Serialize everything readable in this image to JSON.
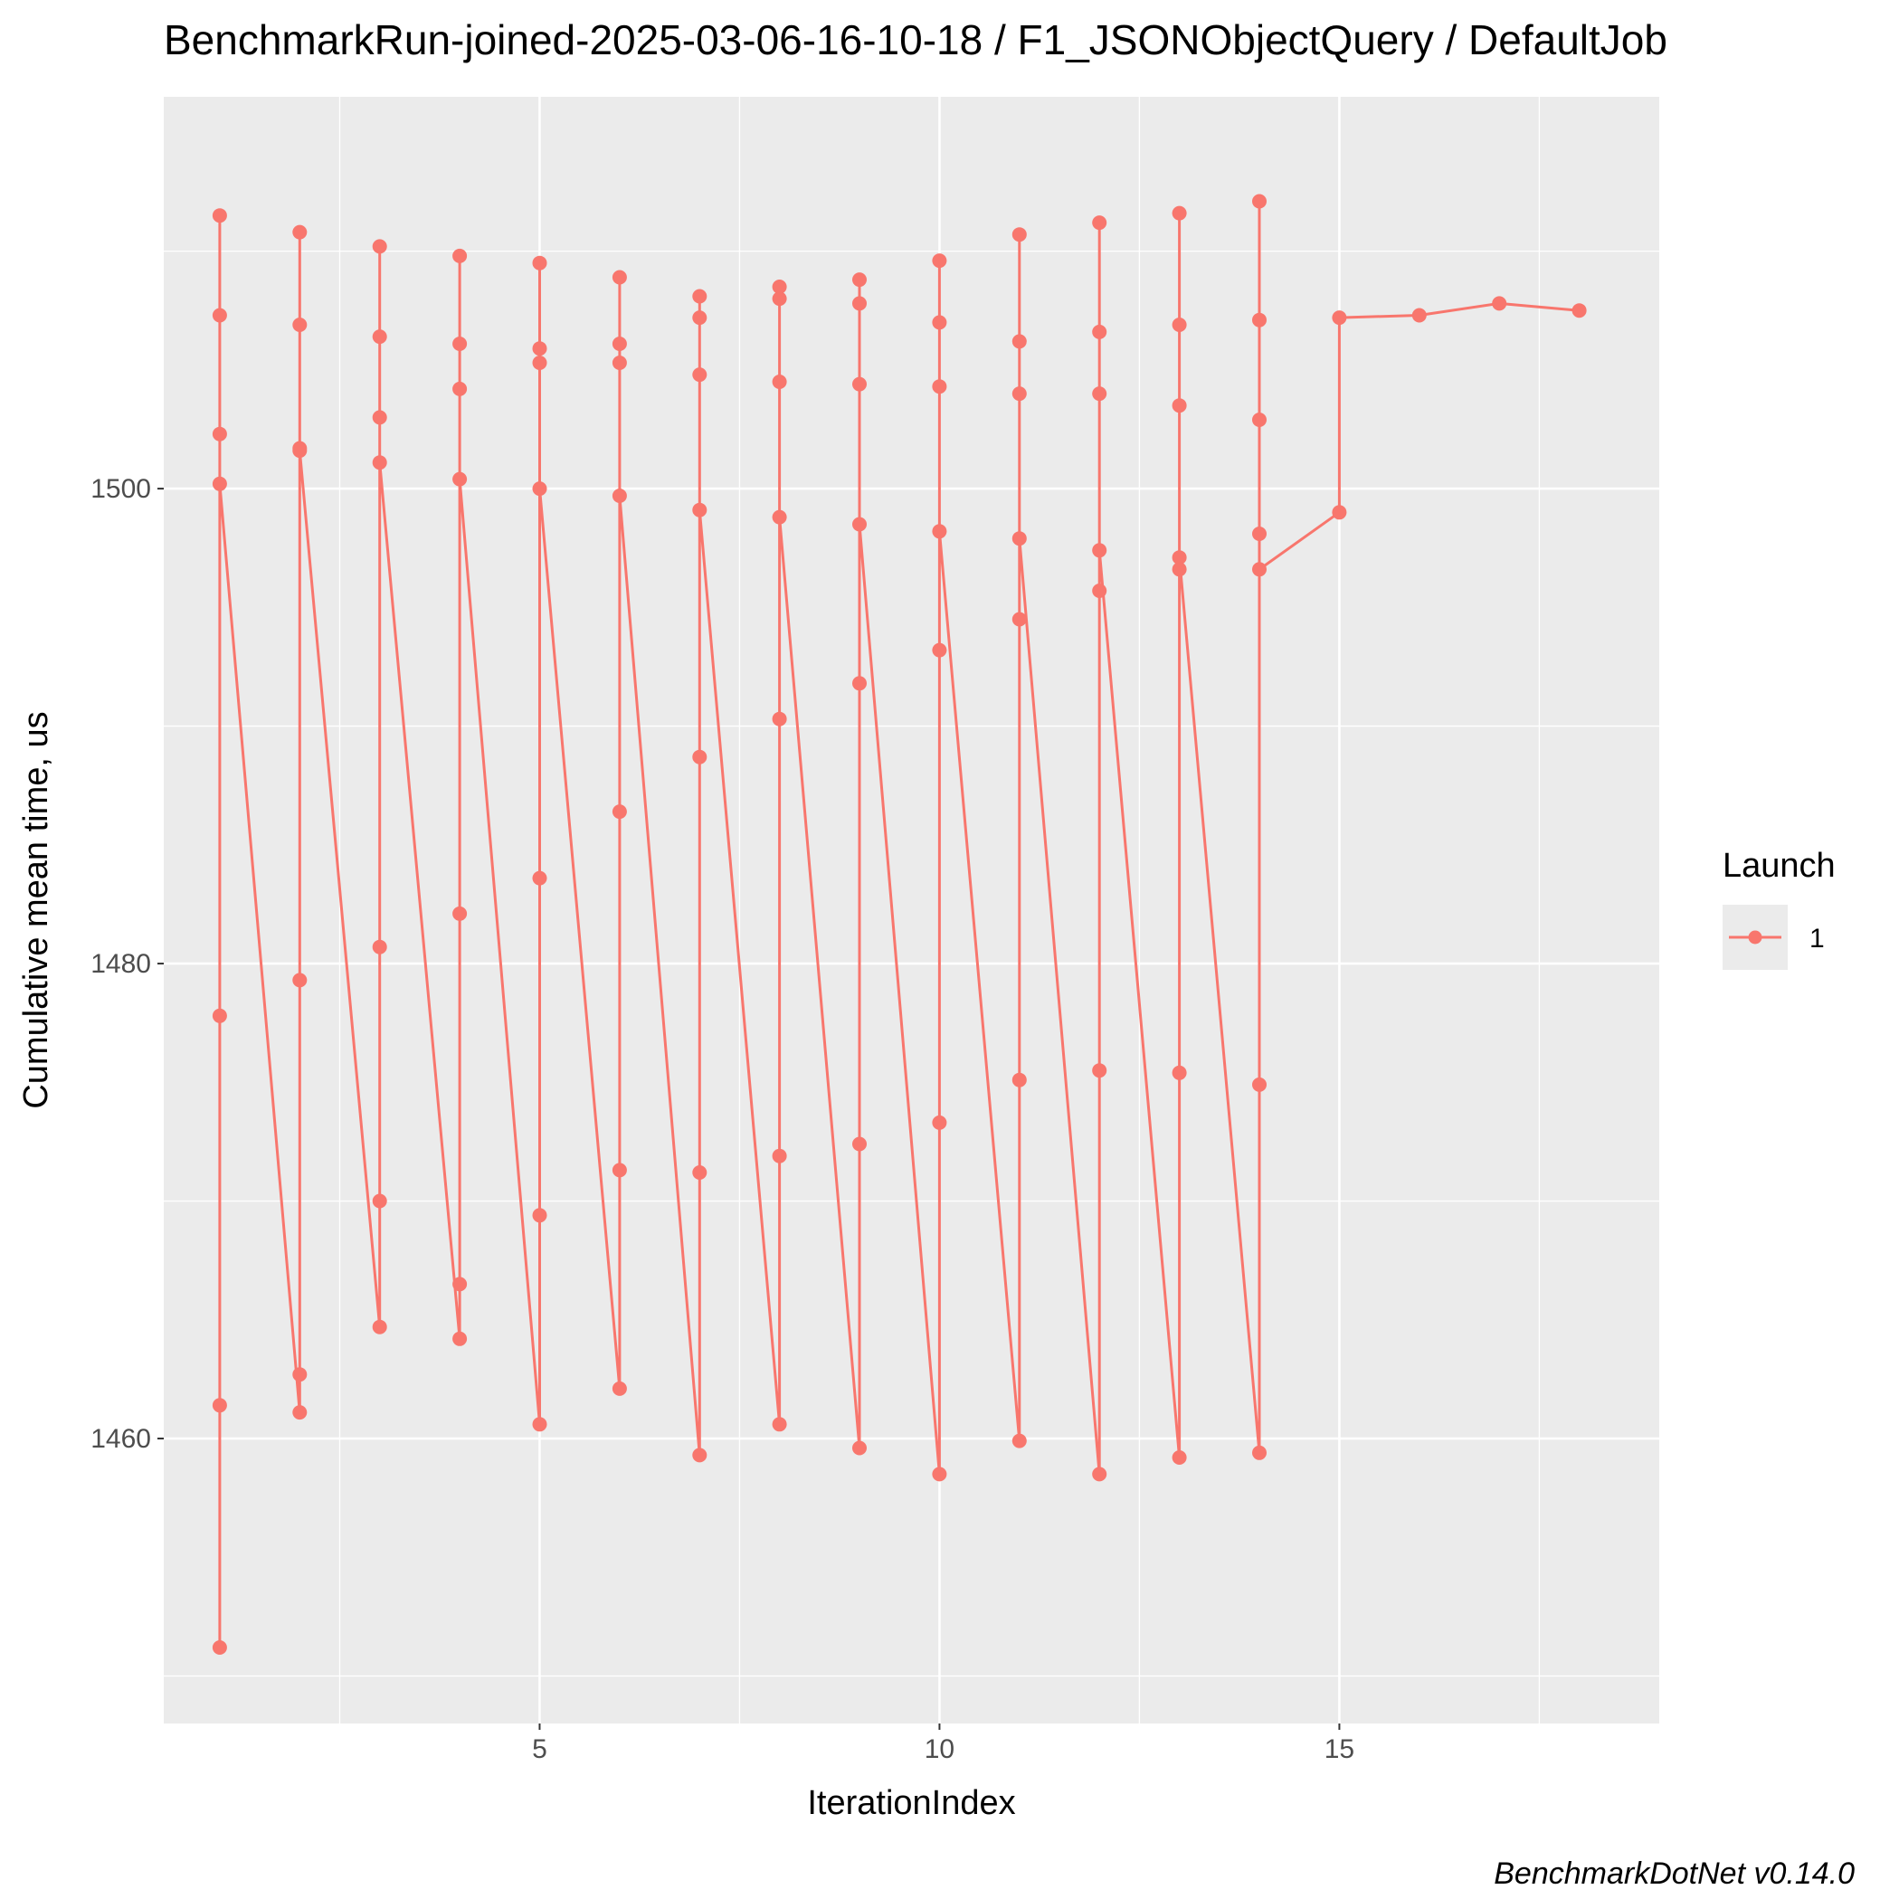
{
  "chart_data": {
    "type": "line",
    "title": "BenchmarkRun-joined-2025-03-06-16-10-18 / F1_JSONObjectQuery / DefaultJob",
    "xlabel": "IterationIndex",
    "ylabel": "Cumulative mean time, us",
    "caption": "BenchmarkDotNet v0.14.0",
    "xlim": [
      0.3,
      19.0
    ],
    "ylim": [
      1448.0,
      1516.5
    ],
    "x_ticks": [
      5,
      10,
      15
    ],
    "x_tick_labels": [
      "5",
      "10",
      "15"
    ],
    "y_ticks": [
      1460,
      1480,
      1500
    ],
    "y_tick_labels": [
      "1460",
      "1480",
      "1500"
    ],
    "grid": true,
    "legend": {
      "title": "Launch",
      "position": "right",
      "entries": [
        "1"
      ]
    },
    "series": [
      {
        "name": "1",
        "color": "#F8766D",
        "points": [
          {
            "x": 1,
            "y": 1451.2
          },
          {
            "x": 1,
            "y": 1461.4
          },
          {
            "x": 1,
            "y": 1477.8
          },
          {
            "x": 1,
            "y": 1502.3
          },
          {
            "x": 1,
            "y": 1507.3
          },
          {
            "x": 1,
            "y": 1511.5
          },
          {
            "x": 1,
            "y": 1500.2
          },
          {
            "x": 2,
            "y": 1461.1
          },
          {
            "x": 2,
            "y": 1462.7
          },
          {
            "x": 2,
            "y": 1479.3
          },
          {
            "x": 2,
            "y": 1501.7
          },
          {
            "x": 2,
            "y": 1506.9
          },
          {
            "x": 2,
            "y": 1510.8
          },
          {
            "x": 2,
            "y": 1501.6
          },
          {
            "x": 3,
            "y": 1464.7
          },
          {
            "x": 3,
            "y": 1470.0
          },
          {
            "x": 3,
            "y": 1480.7
          },
          {
            "x": 3,
            "y": 1503.0
          },
          {
            "x": 3,
            "y": 1506.4
          },
          {
            "x": 3,
            "y": 1510.2
          },
          {
            "x": 3,
            "y": 1501.1
          },
          {
            "x": 4,
            "y": 1464.2
          },
          {
            "x": 4,
            "y": 1466.5
          },
          {
            "x": 4,
            "y": 1482.1
          },
          {
            "x": 4,
            "y": 1504.2
          },
          {
            "x": 4,
            "y": 1506.1
          },
          {
            "x": 4,
            "y": 1509.8
          },
          {
            "x": 4,
            "y": 1500.4
          },
          {
            "x": 5,
            "y": 1460.6
          },
          {
            "x": 5,
            "y": 1469.4
          },
          {
            "x": 5,
            "y": 1483.6
          },
          {
            "x": 5,
            "y": 1505.3
          },
          {
            "x": 5,
            "y": 1505.9
          },
          {
            "x": 5,
            "y": 1509.5
          },
          {
            "x": 5,
            "y": 1500.0
          },
          {
            "x": 6,
            "y": 1462.1
          },
          {
            "x": 6,
            "y": 1471.3
          },
          {
            "x": 6,
            "y": 1486.4
          },
          {
            "x": 6,
            "y": 1505.3
          },
          {
            "x": 6,
            "y": 1506.1
          },
          {
            "x": 6,
            "y": 1508.9
          },
          {
            "x": 6,
            "y": 1499.7
          },
          {
            "x": 7,
            "y": 1459.3
          },
          {
            "x": 7,
            "y": 1471.2
          },
          {
            "x": 7,
            "y": 1488.7
          },
          {
            "x": 7,
            "y": 1504.8
          },
          {
            "x": 7,
            "y": 1507.2
          },
          {
            "x": 7,
            "y": 1508.1
          },
          {
            "x": 7,
            "y": 1499.1
          },
          {
            "x": 8,
            "y": 1460.6
          },
          {
            "x": 8,
            "y": 1471.9
          },
          {
            "x": 8,
            "y": 1490.3
          },
          {
            "x": 8,
            "y": 1504.5
          },
          {
            "x": 8,
            "y": 1508.0
          },
          {
            "x": 8,
            "y": 1508.5
          },
          {
            "x": 8,
            "y": 1498.8
          },
          {
            "x": 9,
            "y": 1459.6
          },
          {
            "x": 9,
            "y": 1472.4
          },
          {
            "x": 9,
            "y": 1491.8
          },
          {
            "x": 9,
            "y": 1504.4
          },
          {
            "x": 9,
            "y": 1507.8
          },
          {
            "x": 9,
            "y": 1508.8
          },
          {
            "x": 9,
            "y": 1498.5
          },
          {
            "x": 10,
            "y": 1458.5
          },
          {
            "x": 10,
            "y": 1473.3
          },
          {
            "x": 10,
            "y": 1493.2
          },
          {
            "x": 10,
            "y": 1504.3
          },
          {
            "x": 10,
            "y": 1507.0
          },
          {
            "x": 10,
            "y": 1509.6
          },
          {
            "x": 10,
            "y": 1498.2
          },
          {
            "x": 11,
            "y": 1459.9
          },
          {
            "x": 11,
            "y": 1475.1
          },
          {
            "x": 11,
            "y": 1494.5
          },
          {
            "x": 11,
            "y": 1504.0
          },
          {
            "x": 11,
            "y": 1506.2
          },
          {
            "x": 11,
            "y": 1510.7
          },
          {
            "x": 11,
            "y": 1497.9
          },
          {
            "x": 12,
            "y": 1458.5
          },
          {
            "x": 12,
            "y": 1475.5
          },
          {
            "x": 12,
            "y": 1495.7
          },
          {
            "x": 12,
            "y": 1504.0
          },
          {
            "x": 12,
            "y": 1506.6
          },
          {
            "x": 12,
            "y": 1511.2
          },
          {
            "x": 12,
            "y": 1497.4
          },
          {
            "x": 13,
            "y": 1459.2
          },
          {
            "x": 13,
            "y": 1475.4
          },
          {
            "x": 13,
            "y": 1496.6
          },
          {
            "x": 13,
            "y": 1503.5
          },
          {
            "x": 13,
            "y": 1506.9
          },
          {
            "x": 13,
            "y": 1511.6
          },
          {
            "x": 13,
            "y": 1497.1
          },
          {
            "x": 14,
            "y": 1459.4
          },
          {
            "x": 14,
            "y": 1474.9
          },
          {
            "x": 14,
            "y": 1498.1
          },
          {
            "x": 14,
            "y": 1502.9
          },
          {
            "x": 14,
            "y": 1507.1
          },
          {
            "x": 14,
            "y": 1512.1
          },
          {
            "x": 14,
            "y": 1496.6
          },
          {
            "x": 15,
            "y": 1499.0
          },
          {
            "x": 15,
            "y": 1507.2
          },
          {
            "x": 16,
            "y": 1507.3
          },
          {
            "x": 17,
            "y": 1507.8
          },
          {
            "x": 18,
            "y": 1507.5
          }
        ]
      }
    ]
  }
}
